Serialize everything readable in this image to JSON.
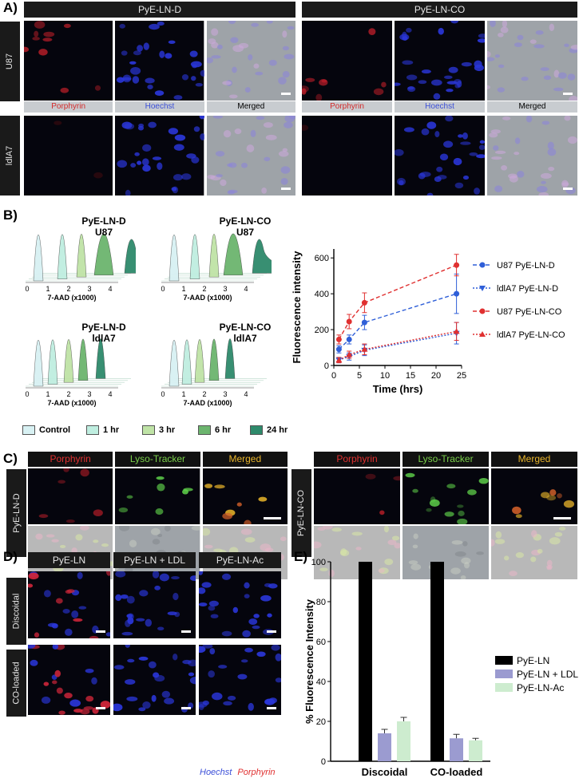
{
  "panel_labels": {
    "A": "A)",
    "B": "B)",
    "C": "C)",
    "D": "D)",
    "E": "E)"
  },
  "panelA": {
    "columns": [
      "PyE-LN-D",
      "PyE-LN-CO"
    ],
    "rows": [
      "U87",
      "ldlA7"
    ],
    "channels": [
      "Porphyrin",
      "Hoechst",
      "Merged"
    ]
  },
  "panelB": {
    "flow": [
      {
        "title": "PyE-LN-D",
        "sub": "U87"
      },
      {
        "title": "PyE-LN-CO",
        "sub": "U87"
      },
      {
        "title": "PyE-LN-D",
        "sub": "ldlA7"
      },
      {
        "title": "PyE-LN-CO",
        "sub": "ldlA7"
      }
    ],
    "flow_xlabel": "7-AAD (x1000)",
    "flow_ticks": [
      "0",
      "1",
      "2",
      "3",
      "4"
    ],
    "time_legend": [
      {
        "label": "Control",
        "color": "#d8f1f3"
      },
      {
        "label": "1 hr",
        "color": "#bfeee0"
      },
      {
        "label": "3 hr",
        "color": "#bfe3a6"
      },
      {
        "label": "6 hr",
        "color": "#6cb56e"
      },
      {
        "label": "24 hr",
        "color": "#2e8a6b"
      }
    ]
  },
  "chart_data": {
    "type": "line",
    "title": "",
    "xlabel": "Time (hrs)",
    "ylabel": "Fluorescence intensity",
    "x": [
      1,
      3,
      6,
      24
    ],
    "xlim": [
      0,
      25
    ],
    "ylim": [
      0,
      650
    ],
    "xticks": [
      0,
      5,
      10,
      15,
      20,
      25
    ],
    "yticks": [
      0,
      200,
      400,
      600
    ],
    "series": [
      {
        "name": "U87 PyE-LN-D",
        "color": "#2f5fd8",
        "marker": "circle",
        "dash": "5,3",
        "values": [
          90,
          145,
          240,
          400
        ],
        "err": [
          20,
          25,
          40,
          110
        ]
      },
      {
        "name": "ldlA7 PyE-LN-D",
        "color": "#2f5fd8",
        "marker": "triangle-down",
        "dash": "2,2",
        "values": [
          30,
          50,
          85,
          180
        ],
        "err": [
          15,
          20,
          30,
          60
        ]
      },
      {
        "name": "U87 PyE-LN-CO",
        "color": "#e03030",
        "marker": "circle",
        "dash": "5,3",
        "values": [
          145,
          245,
          350,
          560
        ],
        "err": [
          25,
          40,
          55,
          60
        ]
      },
      {
        "name": "ldlA7 PyE-LN-CO",
        "color": "#e03030",
        "marker": "triangle-up",
        "dash": "2,2",
        "values": [
          30,
          60,
          90,
          190
        ],
        "err": [
          15,
          20,
          30,
          50
        ]
      }
    ]
  },
  "panelC": {
    "rows": [
      "PyE-LN-D",
      "PyE-LN-CO"
    ],
    "channels": [
      "Porphyrin",
      "Lyso-Tracker",
      "Merged"
    ]
  },
  "panelD": {
    "columns": [
      "PyE-LN",
      "PyE-LN + LDL",
      "PyE-LN-Ac"
    ],
    "rows": [
      "Discoidal",
      "CO-loaded"
    ],
    "stain_hoechst": "Hoechst",
    "stain_porphyrin": "Porphyrin"
  },
  "panelE": {
    "type": "bar",
    "ylabel": "% Fluorescence Intensity",
    "categories": [
      "Discoidal",
      "CO-loaded"
    ],
    "ylim": [
      0,
      100
    ],
    "yticks": [
      0,
      20,
      40,
      60,
      80,
      100
    ],
    "series": [
      {
        "name": "PyE-LN",
        "color": "#000000",
        "values": [
          100,
          100
        ],
        "err": [
          0,
          0
        ]
      },
      {
        "name": "PyE-LN + LDL",
        "color": "#9b9bd0",
        "values": [
          14,
          11.5
        ],
        "err": [
          2,
          2
        ]
      },
      {
        "name": "PyE-LN-Ac",
        "color": "#cdeccf",
        "values": [
          20,
          10.5
        ],
        "err": [
          2,
          1
        ]
      }
    ]
  }
}
